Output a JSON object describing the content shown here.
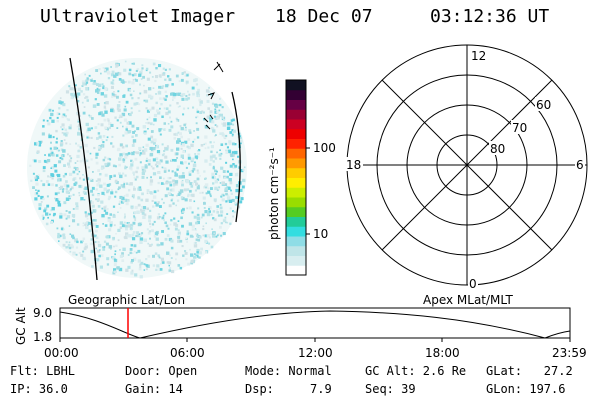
{
  "header": {
    "title": "Ultraviolet Imager",
    "date": "18 Dec 07",
    "time": "03:12:36 UT"
  },
  "colorbar": {
    "unit_label": "photon cm⁻²s⁻¹",
    "ticks": [
      "100",
      "10"
    ],
    "colors": [
      "#ffffff",
      "#d8eef0",
      "#bfe5e8",
      "#8fdde6",
      "#33dde0",
      "#22cc99",
      "#55cc22",
      "#99dd00",
      "#ccee00",
      "#ffee00",
      "#ffcc00",
      "#ff9900",
      "#ff6600",
      "#ff2200",
      "#ee0000",
      "#cc0022",
      "#990033",
      "#660044",
      "#330033",
      "#111122"
    ]
  },
  "polar": {
    "mlt_labels": {
      "top": "12",
      "left": "18",
      "right": "6",
      "bottom": "0"
    },
    "lat_labels": [
      "60",
      "70",
      "80"
    ]
  },
  "timeline": {
    "left_label": "Geographic Lat/Lon",
    "right_label": "Apex MLat/MLT",
    "axis_title": "GC Alt",
    "y_ticks": [
      "9.0",
      "1.8"
    ],
    "x_ticks": [
      "00:00",
      "06:00",
      "12:00",
      "18:00",
      "23:59"
    ],
    "marker_color": "#ff0000"
  },
  "footer": {
    "col1": [
      "Flt: LBHL",
      "IP: 36.0"
    ],
    "col2": [
      "Door: Open",
      "Gain: 14"
    ],
    "col3": [
      "Mode: Normal",
      "Dsp:     7.9"
    ],
    "col4": [
      "GC Alt: 2.6 Re",
      "Seq: 39"
    ],
    "col5": [
      "GLat:   27.2",
      "GLon: 197.6"
    ]
  }
}
